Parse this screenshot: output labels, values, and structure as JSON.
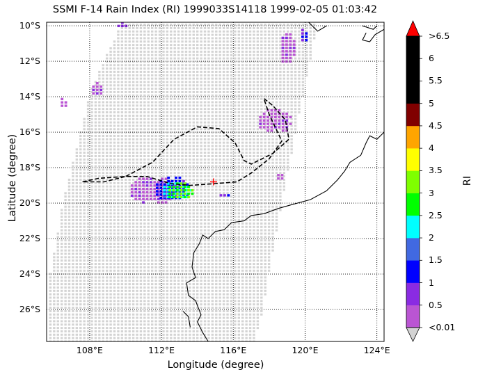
{
  "title": "SSMI F-14 Rain Index (RI) 1999033S14118 1999-02-05 01:03:42",
  "xlabel": "Longitude (degree)",
  "ylabel": "Latitude (degree)",
  "colorbar": {
    "label": "RI",
    "tick_labels": [
      "<0.01",
      "0.5",
      "1",
      "1.5",
      "2",
      "2.5",
      "3",
      "3.5",
      "4",
      "4.5",
      "5",
      "5.5",
      "6",
      ">6.5"
    ],
    "colors": [
      "#ba55d3",
      "#8a2be2",
      "#0000ff",
      "#4169e1",
      "#00ffff",
      "#00ff00",
      "#7fff00",
      "#ffff00",
      "#ffa500",
      "#800000",
      "#000000",
      "#000000",
      "#000000"
    ],
    "under_color": "#d3d3d3",
    "over_color": "#ff0000"
  },
  "chart_data": {
    "type": "heatmap",
    "xlim": [
      105.6,
      124.4
    ],
    "ylim": [
      -27.8,
      -9.8
    ],
    "xticks": [
      108,
      112,
      116,
      120,
      124
    ],
    "xtick_labels": [
      "108°E",
      "112°E",
      "116°E",
      "120°E",
      "124°E"
    ],
    "yticks": [
      -10,
      -12,
      -14,
      -16,
      -18,
      -20,
      -22,
      -24,
      -26
    ],
    "ytick_labels": [
      "10°S",
      "12°S",
      "14°S",
      "16°S",
      "18°S",
      "20°S",
      "22°S",
      "24°S",
      "26°S"
    ],
    "grid": true,
    "swath_polygon": [
      [
        109.8,
        -9.8
      ],
      [
        120.7,
        -9.8
      ],
      [
        118.7,
        -20
      ],
      [
        118.2,
        -22.7
      ],
      [
        117.6,
        -26.3
      ],
      [
        117.2,
        -27.8
      ],
      [
        105.8,
        -27.8
      ],
      [
        105.8,
        -24
      ],
      [
        106.5,
        -20
      ],
      [
        108.1,
        -13.5
      ]
    ],
    "rain_cells": [
      {
        "lon": 111.5,
        "lat": -19.3,
        "rx": 1.35,
        "ry": 0.85,
        "value": 0.3
      },
      {
        "lon": 112.6,
        "lat": -19.2,
        "rx": 1.05,
        "ry": 0.7,
        "value": 1.2
      },
      {
        "lon": 112.8,
        "lat": -19.3,
        "rx": 0.85,
        "ry": 0.55,
        "value": 2.2
      },
      {
        "lon": 113.0,
        "lat": -19.35,
        "rx": 0.75,
        "ry": 0.5,
        "value": 3.0
      },
      {
        "lon": 118.3,
        "lat": -15.4,
        "rx": 1.0,
        "ry": 0.7,
        "value": 0.3
      },
      {
        "lon": 119.0,
        "lat": -11.3,
        "rx": 0.45,
        "ry": 0.9,
        "value": 0.4
      },
      {
        "lon": 119.9,
        "lat": -10.6,
        "rx": 0.25,
        "ry": 0.4,
        "value": 1.2
      },
      {
        "lon": 109.8,
        "lat": -10.0,
        "rx": 0.4,
        "ry": 0.2,
        "value": 1.0
      },
      {
        "lon": 108.4,
        "lat": -13.6,
        "rx": 0.4,
        "ry": 0.4,
        "value": 0.3
      },
      {
        "lon": 106.5,
        "lat": -14.4,
        "rx": 0.25,
        "ry": 0.3,
        "value": 0.3
      },
      {
        "lon": 115.5,
        "lat": -19.6,
        "rx": 0.4,
        "ry": 0.15,
        "value": 1.0
      },
      {
        "lon": 118.6,
        "lat": -18.6,
        "rx": 0.3,
        "ry": 0.2,
        "value": 0.5
      }
    ],
    "track": [
      [
        107.6,
        -18.8
      ],
      [
        108.5,
        -18.6
      ],
      [
        110.0,
        -18.5
      ],
      [
        111.5,
        -17.7
      ],
      [
        112.7,
        -16.4
      ],
      [
        114.0,
        -15.7
      ],
      [
        115.2,
        -15.8
      ],
      [
        116.1,
        -16.6
      ],
      [
        116.6,
        -17.6
      ],
      [
        117.0,
        -17.8
      ],
      [
        118.2,
        -17.2
      ],
      [
        119.1,
        -16.4
      ],
      [
        118.9,
        -15.3
      ],
      [
        118.2,
        -14.5
      ],
      [
        117.7,
        -14.1
      ],
      [
        118.0,
        -15.0
      ],
      [
        118.7,
        -16.5
      ],
      [
        118.0,
        -17.5
      ],
      [
        117.0,
        -18.3
      ],
      [
        116.2,
        -18.8
      ],
      [
        115.0,
        -18.9
      ],
      [
        113.6,
        -19.0
      ],
      [
        112.5,
        -18.9
      ],
      [
        111.2,
        -18.5
      ],
      [
        110.0,
        -18.5
      ],
      [
        108.8,
        -18.8
      ],
      [
        107.6,
        -18.8
      ]
    ],
    "storm_center": {
      "lon": 114.9,
      "lat": -18.8
    },
    "coastline": [
      [
        [
          119.3,
          -9.8
        ],
        [
          120.2,
          -9.8
        ],
        [
          120.7,
          -10.3
        ],
        [
          121.2,
          -10.0
        ]
      ],
      [
        [
          123.2,
          -10.0
        ],
        [
          123.8,
          -10.2
        ],
        [
          124.0,
          -10.0
        ]
      ],
      [
        [
          124.4,
          -10.2
        ],
        [
          123.9,
          -10.5
        ],
        [
          123.6,
          -10.9
        ],
        [
          123.2,
          -10.8
        ],
        [
          123.4,
          -10.4
        ]
      ],
      [
        [
          124.4,
          -16.0
        ],
        [
          124.0,
          -16.4
        ],
        [
          123.6,
          -16.2
        ],
        [
          123.4,
          -16.6
        ],
        [
          123.1,
          -17.3
        ],
        [
          122.5,
          -17.7
        ],
        [
          122.2,
          -18.2
        ],
        [
          121.8,
          -18.7
        ],
        [
          121.2,
          -19.3
        ],
        [
          120.3,
          -19.8
        ],
        [
          119.2,
          -20.1
        ],
        [
          118.5,
          -20.3
        ],
        [
          117.7,
          -20.6
        ],
        [
          117.0,
          -20.7
        ],
        [
          116.6,
          -21.0
        ],
        [
          115.9,
          -21.1
        ],
        [
          115.5,
          -21.5
        ],
        [
          115.0,
          -21.6
        ],
        [
          114.6,
          -22.0
        ],
        [
          114.3,
          -21.8
        ],
        [
          114.1,
          -22.3
        ],
        [
          113.8,
          -22.8
        ],
        [
          113.7,
          -23.6
        ],
        [
          113.9,
          -24.2
        ],
        [
          113.4,
          -24.5
        ],
        [
          113.5,
          -25.2
        ],
        [
          113.9,
          -25.5
        ],
        [
          114.2,
          -26.3
        ],
        [
          114.0,
          -26.7
        ],
        [
          114.3,
          -27.3
        ],
        [
          114.6,
          -27.8
        ]
      ],
      [
        [
          113.2,
          -26.1
        ],
        [
          113.5,
          -26.4
        ],
        [
          113.6,
          -27.0
        ]
      ]
    ]
  }
}
